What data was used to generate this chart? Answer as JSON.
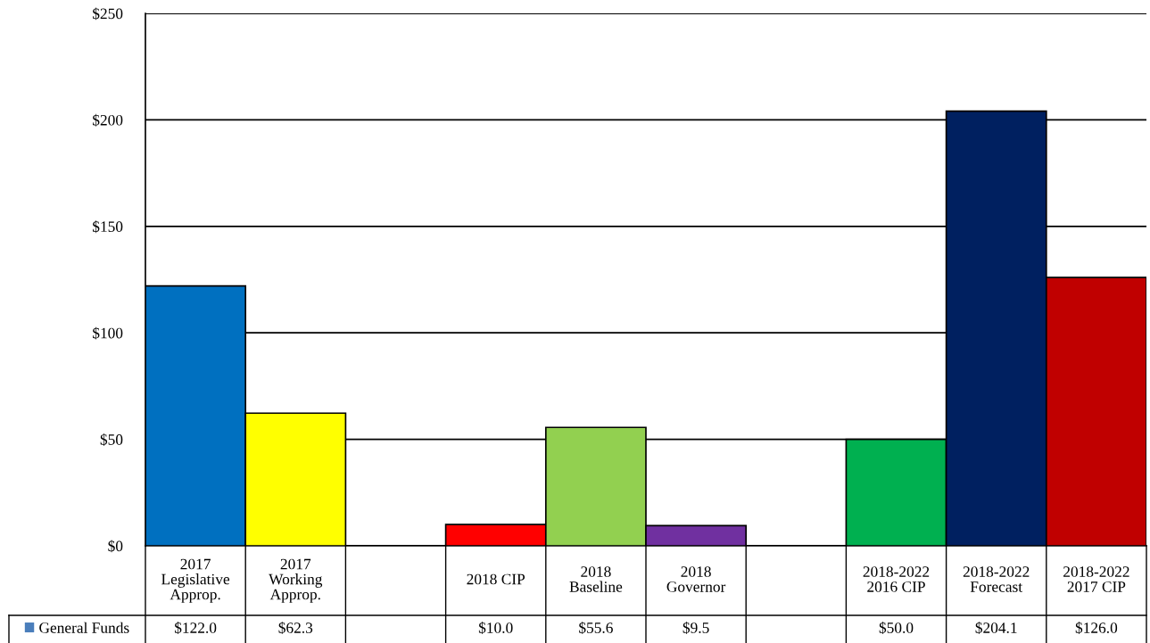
{
  "chart_data": {
    "type": "bar",
    "categories": [
      "2017\nLegislative\nApprop.",
      "2017\nWorking\nApprop.",
      null,
      "2018 CIP",
      "2018\nBaseline",
      "2018\nGovernor",
      null,
      "2018-2022\n2016 CIP",
      "2018-2022\nForecast",
      "2018-2022\n2017 CIP"
    ],
    "series": [
      {
        "name": "General Funds",
        "color": "#4a7ebb",
        "colors": [
          "#0070c0",
          "#ffff00",
          "#ffffff",
          "#ff0000",
          "#92d050",
          "#7030a0",
          "#ffffff",
          "#00b050",
          "#002060",
          "#c00000"
        ],
        "values": [
          122.0,
          62.3,
          null,
          10.0,
          55.6,
          9.5,
          null,
          50.0,
          204.1,
          126.0
        ],
        "value_labels": [
          "$122.0",
          "$62.3",
          null,
          "$10.0",
          "$55.6",
          "$9.5",
          null,
          "$50.0",
          "$204.1",
          "$126.0"
        ]
      }
    ],
    "ylim": [
      0,
      250
    ],
    "yticks": [
      {
        "value": 0,
        "label": "$0"
      },
      {
        "value": 50,
        "label": "$50"
      },
      {
        "value": 100,
        "label": "$100"
      },
      {
        "value": 150,
        "label": "$150"
      },
      {
        "value": 200,
        "label": "$200"
      },
      {
        "value": 250,
        "label": "$250"
      }
    ],
    "grid": "y",
    "legend": "bottom left"
  }
}
